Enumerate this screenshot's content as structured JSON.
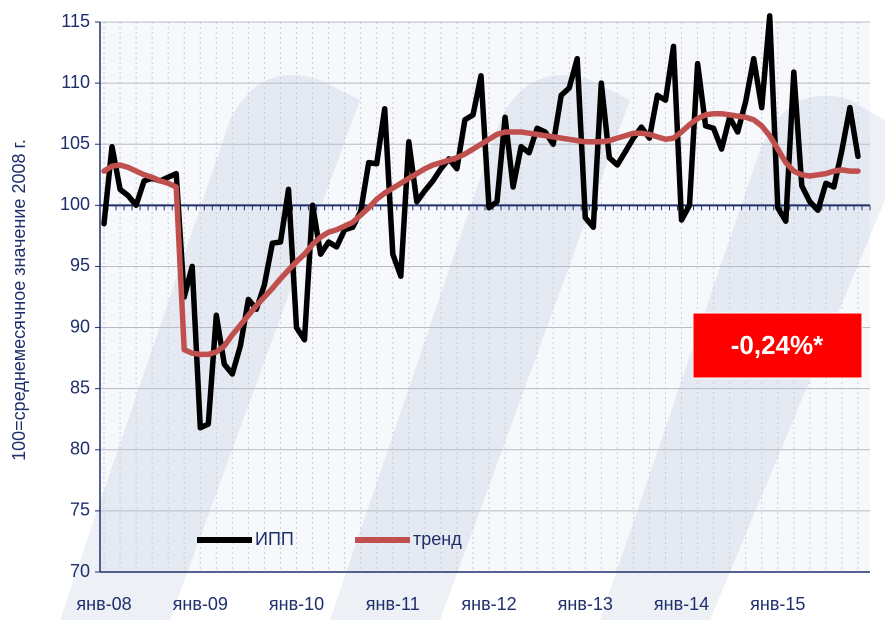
{
  "chart_data": {
    "type": "line",
    "y_label": "100=среднемесячное значение 2008 г.",
    "annotation": "-0,24%*",
    "categories": [
      "янв-08",
      null,
      null,
      null,
      null,
      null,
      null,
      null,
      null,
      null,
      null,
      null,
      "янв-09",
      null,
      null,
      null,
      null,
      null,
      null,
      null,
      null,
      null,
      null,
      null,
      "янв-10",
      null,
      null,
      null,
      null,
      null,
      null,
      null,
      null,
      null,
      null,
      null,
      "янв-11",
      null,
      null,
      null,
      null,
      null,
      null,
      null,
      null,
      null,
      null,
      null,
      "янв-12",
      null,
      null,
      null,
      null,
      null,
      null,
      null,
      null,
      null,
      null,
      null,
      "янв-13",
      null,
      null,
      null,
      null,
      null,
      null,
      null,
      null,
      null,
      null,
      null,
      "янв-14",
      null,
      null,
      null,
      null,
      null,
      null,
      null,
      null,
      null,
      null,
      null,
      "янв-15",
      null,
      null,
      null,
      null,
      null,
      null,
      null,
      null,
      null,
      null,
      null
    ],
    "series": [
      {
        "name": "ИПП",
        "color": "#000000",
        "values": [
          98.5,
          104.8,
          101.3,
          100.8,
          100.0,
          102.0,
          102.2,
          102.0,
          102.3,
          102.6,
          92.5,
          95.0,
          81.8,
          82.1,
          91.0,
          87.0,
          86.2,
          88.5,
          92.3,
          91.5,
          93.5,
          96.9,
          97.0,
          101.3,
          90.0,
          89.0,
          100.0,
          96.0,
          97.0,
          96.6,
          98.0,
          98.2,
          99.5,
          103.5,
          103.4,
          107.9,
          96.0,
          94.2,
          105.2,
          100.3,
          101.2,
          102.0,
          103.0,
          103.8,
          103.0,
          107.0,
          107.4,
          110.6,
          99.8,
          100.3,
          107.2,
          101.5,
          104.8,
          104.3,
          106.3,
          106.0,
          105.0,
          109.0,
          109.6,
          112.0,
          99.0,
          98.2,
          110.0,
          103.9,
          103.3,
          104.4,
          105.5,
          106.4,
          105.5,
          109.0,
          108.6,
          113.0,
          98.8,
          100.0,
          111.6,
          106.5,
          106.3,
          104.6,
          107.2,
          106.0,
          108.5,
          112.0,
          108.0,
          115.5,
          99.8,
          98.7,
          110.9,
          101.6,
          100.3,
          99.6,
          101.8,
          101.5,
          104.5,
          108.0,
          104.0,
          null
        ]
      },
      {
        "name": "тренд",
        "color": "#c0504d",
        "values": [
          102.8,
          103.2,
          103.3,
          103.1,
          102.8,
          102.5,
          102.3,
          102.0,
          101.8,
          101.5,
          88.2,
          87.9,
          87.8,
          87.8,
          88.0,
          88.5,
          89.4,
          90.2,
          91.0,
          91.8,
          92.5,
          93.2,
          94.0,
          94.7,
          95.4,
          96.0,
          96.8,
          97.4,
          97.8,
          98.0,
          98.3,
          98.6,
          99.2,
          99.8,
          100.5,
          101.0,
          101.4,
          101.8,
          102.2,
          102.6,
          103.0,
          103.3,
          103.5,
          103.7,
          103.9,
          104.2,
          104.6,
          105.0,
          105.4,
          105.8,
          106.0,
          106.0,
          106.0,
          105.9,
          105.8,
          105.7,
          105.6,
          105.5,
          105.4,
          105.3,
          105.2,
          105.2,
          105.2,
          105.3,
          105.5,
          105.7,
          105.9,
          105.9,
          105.8,
          105.6,
          105.4,
          105.5,
          106.0,
          106.6,
          107.1,
          107.4,
          107.5,
          107.5,
          107.4,
          107.3,
          107.2,
          107.0,
          106.5,
          105.7,
          104.6,
          103.5,
          102.8,
          102.5,
          102.4,
          102.5,
          102.6,
          102.8,
          102.9,
          102.8,
          102.8,
          null
        ]
      }
    ],
    "ylim": [
      70,
      115
    ],
    "yticks": [
      70,
      75,
      80,
      85,
      90,
      95,
      100,
      105,
      110,
      115
    ],
    "x_axis_at": 100,
    "grid": true,
    "legend": "lower-left",
    "annotation_color": "#ff0000"
  }
}
